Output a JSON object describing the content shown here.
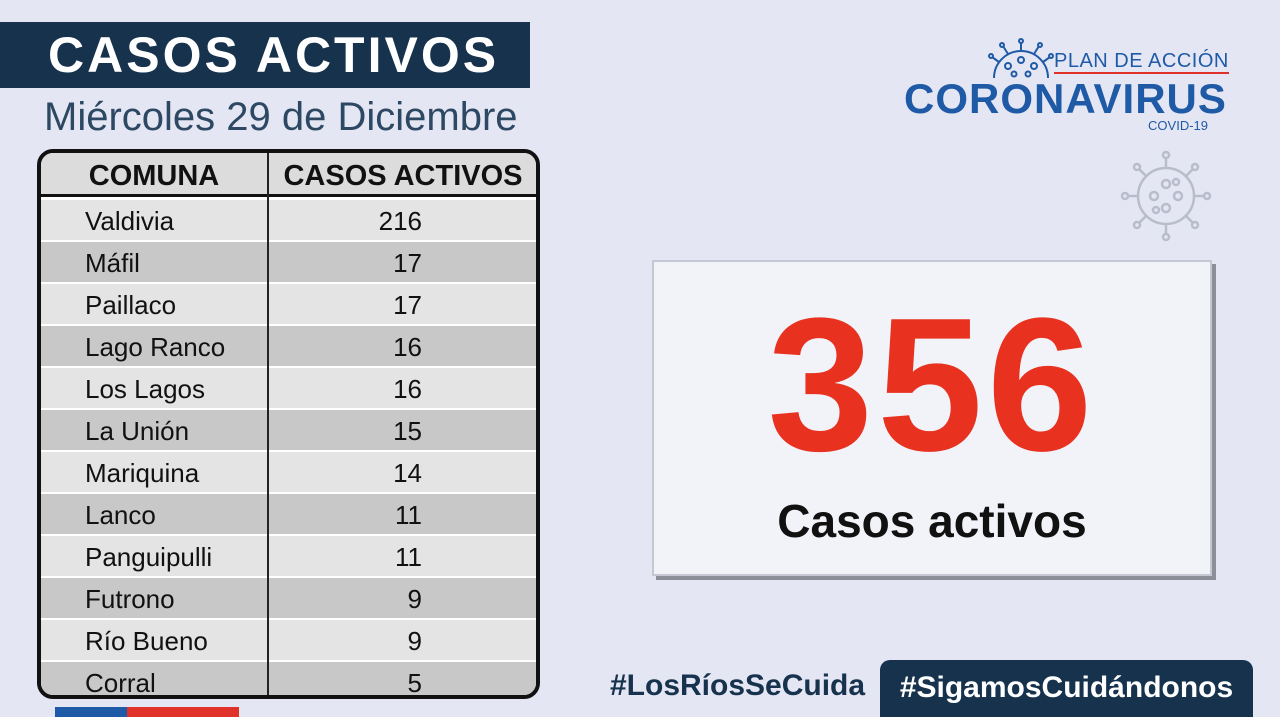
{
  "header": {
    "title": "CASOS ACTIVOS",
    "date": "Miércoles 29 de Diciembre"
  },
  "table": {
    "columns": [
      "COMUNA",
      "CASOS ACTIVOS"
    ],
    "rows": [
      {
        "comuna": "Valdivia",
        "casos": "216"
      },
      {
        "comuna": "Máfil",
        "casos": "17"
      },
      {
        "comuna": "Paillaco",
        "casos": "17"
      },
      {
        "comuna": "Lago Ranco",
        "casos": "16"
      },
      {
        "comuna": "Los Lagos",
        "casos": "16"
      },
      {
        "comuna": "La Unión",
        "casos": "15"
      },
      {
        "comuna": "Mariquina",
        "casos": "14"
      },
      {
        "comuna": "Lanco",
        "casos": "11"
      },
      {
        "comuna": "Panguipulli",
        "casos": "11"
      },
      {
        "comuna": "Futrono",
        "casos": "9"
      },
      {
        "comuna": "Río Bueno",
        "casos": "9"
      },
      {
        "comuna": "Corral",
        "casos": "5"
      }
    ]
  },
  "logo": {
    "plan": "PLAN DE ACCIÓN",
    "name": "CORONAVIRUS",
    "covid": "COVID-19"
  },
  "summary": {
    "total": "356",
    "label": "Casos activos"
  },
  "hashtags": {
    "first": "#LosRíosSeCuida",
    "second": "#SigamosCuidándonos"
  },
  "colors": {
    "navy": "#16324d",
    "brand_blue": "#1f5aa6",
    "accent_red": "#e8311f",
    "background": "#e4e6f4"
  },
  "icons": [
    "virus-icon"
  ]
}
